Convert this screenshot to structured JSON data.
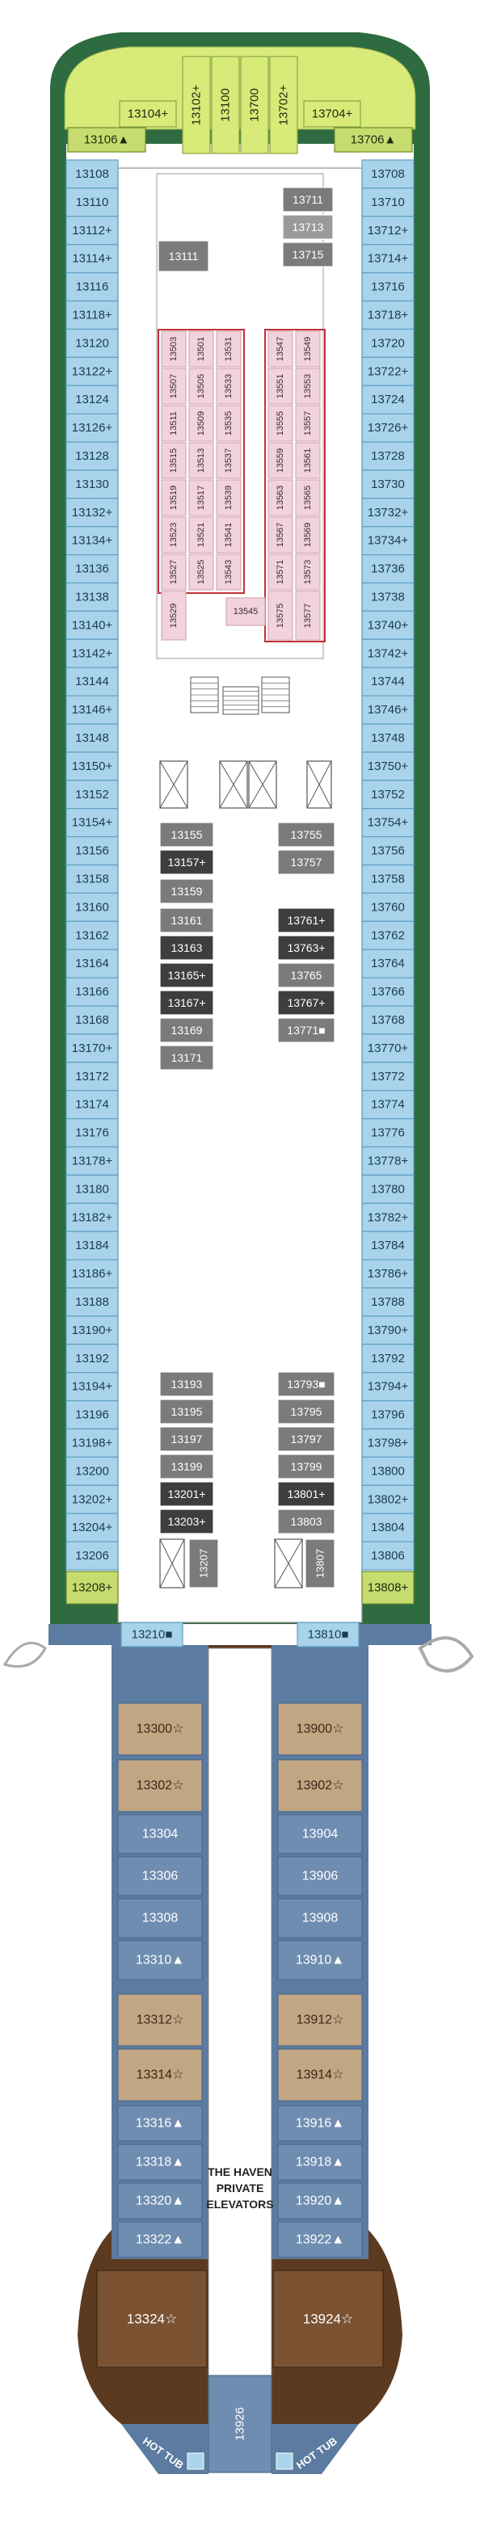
{
  "legend_symbols": {
    "plus": "+",
    "star": "☆",
    "triangle": "▲",
    "square": "■"
  },
  "colors": {
    "hull_blue": "#a9d3ea",
    "hull_blue_stroke": "#5f9fc4",
    "green_deck": "#2e6b40",
    "green_cabin": "#c7dc6e",
    "lime": "#d8ea78",
    "tan_cabin": "#c2a684",
    "tan_dark": "#7a5232",
    "slate_cabin": "#6f8db0",
    "slate_bg": "#5b7ba0",
    "gray_cabin": "#7b7b7b",
    "dark_cabin": "#3e3e3e",
    "pink_cabin": "#f2d2dd",
    "red_outline": "#c2303a",
    "aft_brown": "#5c3a20"
  },
  "forward": {
    "top_cabins": [
      {
        "id": "13104",
        "sym": "plus"
      },
      {
        "id": "13102",
        "sym": "plus"
      },
      {
        "id": "13100",
        "sym": ""
      },
      {
        "id": "13700",
        "sym": ""
      },
      {
        "id": "13702",
        "sym": "plus"
      },
      {
        "id": "13704",
        "sym": "plus"
      }
    ],
    "corner_left": {
      "id": "13106",
      "sym": "triangle"
    },
    "corner_right": {
      "id": "13706",
      "sym": "triangle"
    }
  },
  "port_cabins": [
    {
      "id": "13108",
      "sym": ""
    },
    {
      "id": "13110",
      "sym": ""
    },
    {
      "id": "13112",
      "sym": "plus"
    },
    {
      "id": "13114",
      "sym": "plus"
    },
    {
      "id": "13116",
      "sym": ""
    },
    {
      "id": "13118",
      "sym": "plus"
    },
    {
      "id": "13120",
      "sym": ""
    },
    {
      "id": "13122",
      "sym": "plus"
    },
    {
      "id": "13124",
      "sym": ""
    },
    {
      "id": "13126",
      "sym": "plus"
    },
    {
      "id": "13128",
      "sym": ""
    },
    {
      "id": "13130",
      "sym": ""
    },
    {
      "id": "13132",
      "sym": "plus"
    },
    {
      "id": "13134",
      "sym": "plus"
    },
    {
      "id": "13136",
      "sym": ""
    },
    {
      "id": "13138",
      "sym": ""
    },
    {
      "id": "13140",
      "sym": "plus"
    },
    {
      "id": "13142",
      "sym": "plus"
    },
    {
      "id": "13144",
      "sym": ""
    },
    {
      "id": "13146",
      "sym": "plus"
    },
    {
      "id": "13148",
      "sym": ""
    },
    {
      "id": "13150",
      "sym": "plus"
    },
    {
      "id": "13152",
      "sym": ""
    },
    {
      "id": "13154",
      "sym": "plus"
    },
    {
      "id": "13156",
      "sym": ""
    },
    {
      "id": "13158",
      "sym": ""
    },
    {
      "id": "13160",
      "sym": ""
    },
    {
      "id": "13162",
      "sym": ""
    },
    {
      "id": "13164",
      "sym": ""
    },
    {
      "id": "13166",
      "sym": ""
    },
    {
      "id": "13168",
      "sym": ""
    },
    {
      "id": "13170",
      "sym": "plus"
    },
    {
      "id": "13172",
      "sym": ""
    },
    {
      "id": "13174",
      "sym": ""
    },
    {
      "id": "13176",
      "sym": ""
    },
    {
      "id": "13178",
      "sym": "plus"
    },
    {
      "id": "13180",
      "sym": ""
    },
    {
      "id": "13182",
      "sym": "plus"
    },
    {
      "id": "13184",
      "sym": ""
    },
    {
      "id": "13186",
      "sym": "plus"
    },
    {
      "id": "13188",
      "sym": ""
    },
    {
      "id": "13190",
      "sym": "plus"
    },
    {
      "id": "13192",
      "sym": ""
    },
    {
      "id": "13194",
      "sym": "plus"
    },
    {
      "id": "13196",
      "sym": ""
    },
    {
      "id": "13198",
      "sym": "plus"
    },
    {
      "id": "13200",
      "sym": ""
    },
    {
      "id": "13202",
      "sym": "plus"
    },
    {
      "id": "13204",
      "sym": "plus"
    },
    {
      "id": "13206",
      "sym": ""
    }
  ],
  "port_end": {
    "id": "13208",
    "sym": "plus"
  },
  "starboard_cabins": [
    {
      "id": "13708",
      "sym": ""
    },
    {
      "id": "13710",
      "sym": ""
    },
    {
      "id": "13712",
      "sym": "plus"
    },
    {
      "id": "13714",
      "sym": "plus"
    },
    {
      "id": "13716",
      "sym": ""
    },
    {
      "id": "13718",
      "sym": "plus"
    },
    {
      "id": "13720",
      "sym": ""
    },
    {
      "id": "13722",
      "sym": "plus"
    },
    {
      "id": "13724",
      "sym": ""
    },
    {
      "id": "13726",
      "sym": "plus"
    },
    {
      "id": "13728",
      "sym": ""
    },
    {
      "id": "13730",
      "sym": ""
    },
    {
      "id": "13732",
      "sym": "plus"
    },
    {
      "id": "13734",
      "sym": "plus"
    },
    {
      "id": "13736",
      "sym": ""
    },
    {
      "id": "13738",
      "sym": ""
    },
    {
      "id": "13740",
      "sym": "plus"
    },
    {
      "id": "13742",
      "sym": "plus"
    },
    {
      "id": "13744",
      "sym": ""
    },
    {
      "id": "13746",
      "sym": "plus"
    },
    {
      "id": "13748",
      "sym": ""
    },
    {
      "id": "13750",
      "sym": "plus"
    },
    {
      "id": "13752",
      "sym": ""
    },
    {
      "id": "13754",
      "sym": "plus"
    },
    {
      "id": "13756",
      "sym": ""
    },
    {
      "id": "13758",
      "sym": ""
    },
    {
      "id": "13760",
      "sym": ""
    },
    {
      "id": "13762",
      "sym": ""
    },
    {
      "id": "13764",
      "sym": ""
    },
    {
      "id": "13766",
      "sym": ""
    },
    {
      "id": "13768",
      "sym": ""
    },
    {
      "id": "13770",
      "sym": "plus"
    },
    {
      "id": "13772",
      "sym": ""
    },
    {
      "id": "13774",
      "sym": ""
    },
    {
      "id": "13776",
      "sym": ""
    },
    {
      "id": "13778",
      "sym": "plus"
    },
    {
      "id": "13780",
      "sym": ""
    },
    {
      "id": "13782",
      "sym": "plus"
    },
    {
      "id": "13784",
      "sym": ""
    },
    {
      "id": "13786",
      "sym": "plus"
    },
    {
      "id": "13788",
      "sym": ""
    },
    {
      "id": "13790",
      "sym": "plus"
    },
    {
      "id": "13792",
      "sym": ""
    },
    {
      "id": "13794",
      "sym": "plus"
    },
    {
      "id": "13796",
      "sym": ""
    },
    {
      "id": "13798",
      "sym": "plus"
    },
    {
      "id": "13800",
      "sym": ""
    },
    {
      "id": "13802",
      "sym": "plus"
    },
    {
      "id": "13804",
      "sym": ""
    },
    {
      "id": "13806",
      "sym": ""
    }
  ],
  "starboard_end": {
    "id": "13808",
    "sym": "plus"
  },
  "inner_upper": [
    {
      "id": "13711",
      "sym": ""
    },
    {
      "id": "13713",
      "sym": ""
    },
    {
      "id": "13715",
      "sym": ""
    },
    {
      "id": "13111",
      "sym": ""
    }
  ],
  "studios": {
    "left_block": {
      "cols": [
        [
          "13503",
          "13507",
          "13511",
          "13515",
          "13519",
          "13523",
          "13527"
        ],
        [
          "13501",
          "13505",
          "13509",
          "13513",
          "13517",
          "13521",
          "13525"
        ],
        [
          "13531",
          "13533",
          "13535",
          "13537",
          "13539",
          "13541",
          "13543"
        ]
      ]
    },
    "right_block": {
      "cols": [
        [
          "13547",
          "13551",
          "13555",
          "13559",
          "13563",
          "13567",
          "13571"
        ],
        [
          "13549",
          "13553",
          "13557",
          "13561",
          "13565",
          "13569",
          "13573"
        ]
      ]
    },
    "bottom_extra": [
      "13529",
      "13545",
      "13575",
      "13577"
    ]
  },
  "inner_left": [
    {
      "id": "13155",
      "sym": "",
      "tone": "gray"
    },
    {
      "id": "13157",
      "sym": "plus",
      "tone": "dark"
    },
    {
      "id": "13159",
      "sym": "",
      "tone": "gray"
    },
    {
      "id": "13161",
      "sym": "",
      "tone": "gray"
    },
    {
      "id": "13163",
      "sym": "",
      "tone": "dark"
    },
    {
      "id": "13165",
      "sym": "plus",
      "tone": "dark"
    },
    {
      "id": "13167",
      "sym": "plus",
      "tone": "dark"
    },
    {
      "id": "13169",
      "sym": "",
      "tone": "gray"
    },
    {
      "id": "13171",
      "sym": "",
      "tone": "gray"
    }
  ],
  "inner_right": [
    {
      "id": "13755",
      "sym": "",
      "tone": "gray"
    },
    {
      "id": "13757",
      "sym": "",
      "tone": "gray"
    },
    {
      "id": "13761",
      "sym": "plus",
      "tone": "dark"
    },
    {
      "id": "13763",
      "sym": "plus",
      "tone": "dark"
    },
    {
      "id": "13765",
      "sym": "",
      "tone": "gray"
    },
    {
      "id": "13767",
      "sym": "plus",
      "tone": "dark"
    },
    {
      "id": "13771",
      "sym": "square",
      "tone": "gray"
    }
  ],
  "inner_lower_left": [
    {
      "id": "13193",
      "sym": "",
      "tone": "gray"
    },
    {
      "id": "13195",
      "sym": "",
      "tone": "gray"
    },
    {
      "id": "13197",
      "sym": "",
      "tone": "gray"
    },
    {
      "id": "13199",
      "sym": "",
      "tone": "gray"
    },
    {
      "id": "13201",
      "sym": "plus",
      "tone": "dark"
    },
    {
      "id": "13203",
      "sym": "plus",
      "tone": "dark"
    }
  ],
  "inner_lower_right": [
    {
      "id": "13793",
      "sym": "square",
      "tone": "gray"
    },
    {
      "id": "13795",
      "sym": "",
      "tone": "gray"
    },
    {
      "id": "13797",
      "sym": "",
      "tone": "gray"
    },
    {
      "id": "13799",
      "sym": "",
      "tone": "gray"
    },
    {
      "id": "13801",
      "sym": "plus",
      "tone": "dark"
    },
    {
      "id": "13803",
      "sym": "",
      "tone": "gray"
    }
  ],
  "vertical_cabins": [
    {
      "id": "13207"
    },
    {
      "id": "13807"
    }
  ],
  "transition": [
    {
      "id": "13210",
      "sym": "square"
    },
    {
      "id": "13810",
      "sym": "square"
    }
  ],
  "haven_left": [
    {
      "id": "13300",
      "sym": "star",
      "tone": "tan"
    },
    {
      "id": "13302",
      "sym": "star",
      "tone": "tan"
    },
    {
      "id": "13304",
      "sym": "",
      "tone": "slate"
    },
    {
      "id": "13306",
      "sym": "",
      "tone": "slate"
    },
    {
      "id": "13308",
      "sym": "",
      "tone": "slate"
    },
    {
      "id": "13310",
      "sym": "triangle",
      "tone": "slate"
    },
    {
      "id": "13312",
      "sym": "star",
      "tone": "tan"
    },
    {
      "id": "13314",
      "sym": "star",
      "tone": "tan"
    },
    {
      "id": "13316",
      "sym": "triangle",
      "tone": "slate"
    },
    {
      "id": "13318",
      "sym": "triangle",
      "tone": "slate"
    },
    {
      "id": "13320",
      "sym": "triangle",
      "tone": "slate"
    },
    {
      "id": "13322",
      "sym": "triangle",
      "tone": "slate"
    }
  ],
  "haven_right": [
    {
      "id": "13900",
      "sym": "star",
      "tone": "tan"
    },
    {
      "id": "13902",
      "sym": "star",
      "tone": "tan"
    },
    {
      "id": "13904",
      "sym": "",
      "tone": "slate"
    },
    {
      "id": "13906",
      "sym": "",
      "tone": "slate"
    },
    {
      "id": "13908",
      "sym": "",
      "tone": "slate"
    },
    {
      "id": "13910",
      "sym": "triangle",
      "tone": "slate"
    },
    {
      "id": "13912",
      "sym": "star",
      "tone": "tan"
    },
    {
      "id": "13914",
      "sym": "star",
      "tone": "tan"
    },
    {
      "id": "13916",
      "sym": "triangle",
      "tone": "slate"
    },
    {
      "id": "13918",
      "sym": "triangle",
      "tone": "slate"
    },
    {
      "id": "13920",
      "sym": "triangle",
      "tone": "slate"
    },
    {
      "id": "13922",
      "sym": "triangle",
      "tone": "slate"
    }
  ],
  "haven_elevators_label": [
    "THE HAVEN",
    "PRIVATE",
    "ELEVATORS"
  ],
  "aft_cabins": [
    {
      "id": "13324",
      "sym": "star"
    },
    {
      "id": "13924",
      "sym": "star"
    }
  ],
  "aft_center": {
    "id": "13926"
  },
  "hot_tub_label": "HOT TUB"
}
